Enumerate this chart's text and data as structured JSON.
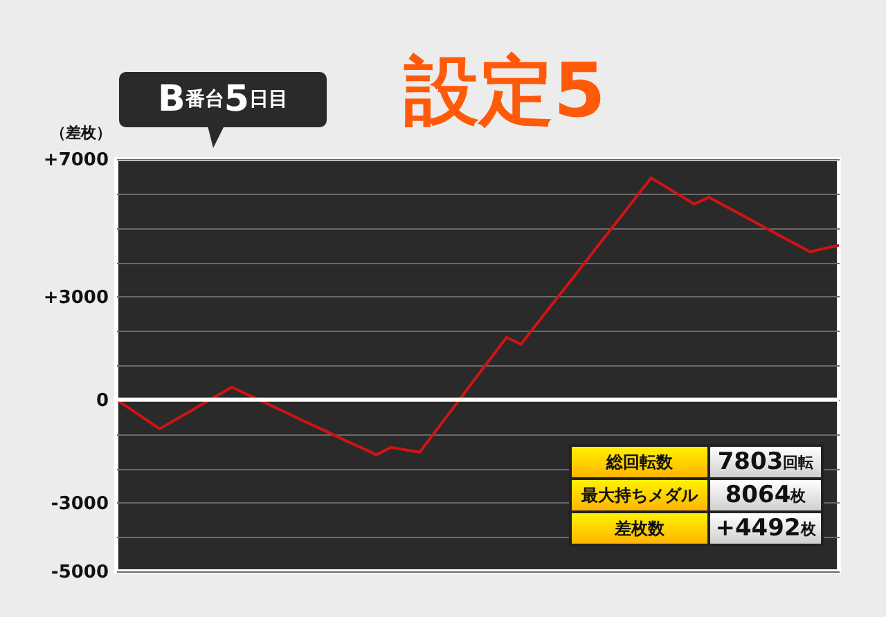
{
  "chart_data": {
    "type": "line",
    "title": "設定5",
    "subtitle": "B番台5日目",
    "ylabel": "（差枚）",
    "categories": [
      null,
      null,
      null,
      null,
      null,
      null,
      null,
      null,
      null,
      null,
      null,
      null,
      null,
      null,
      null,
      null,
      null,
      null,
      null,
      null,
      null,
      null,
      null,
      null,
      null,
      null,
      null,
      null,
      null,
      null,
      null,
      null,
      null,
      null,
      null,
      null,
      null,
      null,
      null,
      null,
      null,
      null,
      null,
      null,
      null,
      null,
      null,
      null,
      null,
      null,
      null
    ],
    "series": [
      {
        "color": "#d01414",
        "values": [
          0,
          -280,
          -570,
          -850,
          -610,
          -370,
          -120,
          120,
          360,
          160,
          -30,
          -230,
          -430,
          -630,
          -820,
          -1020,
          -1220,
          -1410,
          -1610,
          -1390,
          -1460,
          -1530,
          -970,
          -420,
          140,
          700,
          1250,
          1810,
          1610,
          2150,
          2690,
          3220,
          3760,
          4300,
          4840,
          5370,
          5910,
          6450,
          6200,
          5940,
          5690,
          5890,
          5660,
          5440,
          5210,
          4980,
          4750,
          4530,
          4300,
          4400,
          4490
        ]
      }
    ],
    "ylim": [
      -5000,
      7000
    ],
    "yticks": [
      {
        "value": -5000,
        "label": "-5000"
      },
      {
        "value": -4000,
        "label": null
      },
      {
        "value": -3000,
        "label": "-3000"
      },
      {
        "value": -2000,
        "label": null
      },
      {
        "value": -1000,
        "label": null
      },
      0,
      {
        "value": 1000,
        "label": null
      },
      {
        "value": 2000,
        "label": null
      },
      {
        "value": 3000,
        "label": "+3000"
      },
      {
        "value": 4000,
        "label": null
      },
      {
        "value": 5000,
        "label": null
      },
      {
        "value": 6000,
        "label": null
      },
      {
        "value": 7000,
        "label": "+7000"
      }
    ],
    "grid": "y",
    "tick_labels": "y",
    "ref_lines": [
      {
        "axis": "y",
        "value": 0,
        "color": "#ffffff"
      }
    ],
    "annotations": [
      "総回転数",
      "7803回転",
      "最大持ちメダル",
      "8064枚",
      "差枚数",
      "+4492枚"
    ]
  }
}
